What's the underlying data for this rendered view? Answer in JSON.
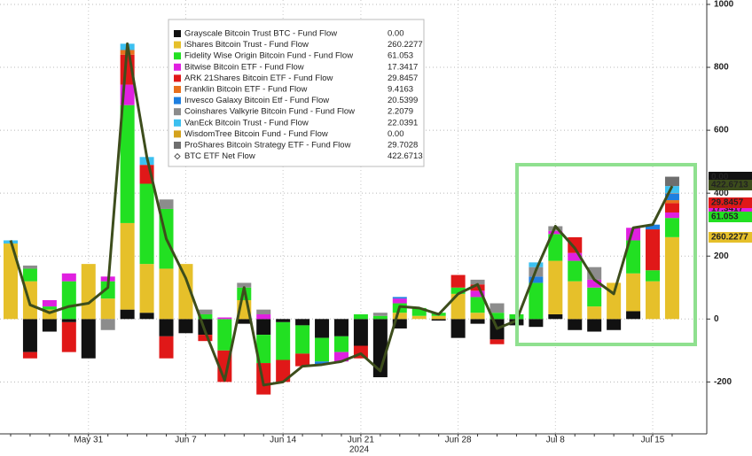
{
  "chart_data": {
    "type": "stacked-bar-line",
    "categories": [
      null,
      null,
      null,
      null,
      "May 31",
      null,
      null,
      null,
      null,
      "Jun 7",
      null,
      null,
      null,
      null,
      "Jun 14",
      null,
      null,
      null,
      "Jun 21",
      null,
      null,
      null,
      null,
      "Jun 28",
      null,
      null,
      null,
      null,
      "Jul 8",
      null,
      null,
      null,
      null,
      "Jul 15",
      null
    ],
    "x_axis_label": "2024",
    "ylim": [
      -365,
      1014
    ],
    "yticks": [
      -200,
      0,
      200,
      400,
      600,
      800,
      1000
    ],
    "grid": true,
    "series": [
      {
        "name": "Grayscale Bitcoin Trust BTC - Fund Flow",
        "color": "#111111",
        "last_label": "0.00",
        "values": [
          0,
          -105,
          -40,
          -10,
          -125,
          0,
          30,
          20,
          -55,
          -45,
          -50,
          0,
          -15,
          -50,
          -10,
          -20,
          -60,
          -55,
          -85,
          -185,
          -30,
          0,
          -5,
          -60,
          -15,
          -65,
          -20,
          -25,
          15,
          -35,
          -40,
          -35,
          25,
          0,
          0
        ]
      },
      {
        "name": "iShares Bitcoin Trust - Fund Flow",
        "color": "#e6c02a",
        "last_label": "260.2277",
        "values": [
          240,
          120,
          30,
          0,
          175,
          65,
          275,
          155,
          160,
          175,
          0,
          0,
          60,
          0,
          0,
          0,
          0,
          0,
          0,
          0,
          20,
          10,
          10,
          80,
          20,
          0,
          0,
          0,
          170,
          120,
          40,
          115,
          120,
          120,
          260.2277
        ]
      },
      {
        "name": "Fidelity Wise Origin Bitcoin Fund - Fund Flow",
        "color": "#22e022",
        "last_label": "61.053",
        "values": [
          0,
          40,
          10,
          120,
          0,
          55,
          375,
          255,
          190,
          0,
          15,
          -100,
          40,
          -90,
          -120,
          -90,
          -75,
          -50,
          15,
          10,
          30,
          25,
          10,
          20,
          50,
          20,
          15,
          115,
          85,
          65,
          60,
          0,
          105,
          35,
          61.053
        ]
      },
      {
        "name": "Bitwise Bitcoin ETF - Fund Flow",
        "color": "#e020e0",
        "last_label": "17.3417",
        "values": [
          0,
          0,
          20,
          25,
          0,
          15,
          65,
          0,
          0,
          0,
          0,
          5,
          0,
          15,
          0,
          0,
          0,
          -30,
          0,
          0,
          15,
          0,
          0,
          0,
          20,
          0,
          0,
          0,
          10,
          25,
          25,
          0,
          40,
          0,
          17.3417
        ]
      },
      {
        "name": "ARK 21Shares Bitcoin ETF - Fund Flow",
        "color": "#e01818",
        "last_label": "29.8457",
        "values": [
          0,
          -20,
          0,
          -95,
          0,
          0,
          95,
          60,
          -70,
          0,
          -20,
          -100,
          0,
          -100,
          -70,
          -40,
          0,
          0,
          -40,
          0,
          0,
          0,
          0,
          40,
          20,
          -15,
          0,
          0,
          0,
          50,
          0,
          0,
          0,
          130,
          29.8457
        ]
      },
      {
        "name": "Franklin Bitcoin ETF - Fund Flow",
        "color": "#e8701e",
        "last_label": "9.4163",
        "values": [
          0,
          0,
          0,
          0,
          0,
          0,
          15,
          0,
          0,
          0,
          0,
          0,
          0,
          0,
          0,
          0,
          0,
          0,
          0,
          0,
          0,
          0,
          0,
          0,
          0,
          0,
          0,
          0,
          0,
          0,
          0,
          0,
          0,
          0,
          9.4163
        ]
      },
      {
        "name": "Invesco Galaxy Bitcoin Etf - Fund Flow",
        "color": "#1e7fe0",
        "last_label": "20.5399",
        "values": [
          0,
          0,
          0,
          0,
          0,
          0,
          0,
          0,
          0,
          0,
          0,
          0,
          0,
          0,
          0,
          0,
          -10,
          0,
          0,
          0,
          5,
          0,
          0,
          0,
          0,
          0,
          0,
          20,
          0,
          0,
          0,
          0,
          0,
          15,
          20.5399
        ]
      },
      {
        "name": "Coinshares Valkyrie Bitcoin Fund - Fund Flow",
        "color": "#8c8c8c",
        "last_label": "2.2079",
        "values": [
          0,
          10,
          0,
          0,
          0,
          -35,
          0,
          0,
          30,
          0,
          15,
          0,
          15,
          15,
          0,
          0,
          0,
          0,
          0,
          10,
          0,
          0,
          0,
          0,
          15,
          30,
          0,
          30,
          15,
          0,
          40,
          0,
          0,
          0,
          2.2079
        ]
      },
      {
        "name": "VanEck Bitcoin Trust - Fund Flow",
        "color": "#3cc0f0",
        "last_label": "22.0391",
        "values": [
          10,
          0,
          0,
          0,
          0,
          0,
          20,
          25,
          0,
          0,
          0,
          0,
          0,
          0,
          0,
          0,
          0,
          0,
          0,
          0,
          0,
          0,
          0,
          0,
          0,
          0,
          0,
          15,
          0,
          0,
          0,
          0,
          0,
          0,
          22.0391
        ]
      },
      {
        "name": "WisdomTree Bitcoin Fund - Fund Flow",
        "color": "#d4a21c",
        "last_label": "0.00",
        "values": [
          0,
          0,
          0,
          0,
          0,
          0,
          0,
          0,
          0,
          0,
          0,
          0,
          0,
          0,
          0,
          0,
          0,
          0,
          0,
          0,
          0,
          0,
          0,
          0,
          0,
          0,
          0,
          0,
          0,
          0,
          0,
          0,
          0,
          0,
          0
        ]
      },
      {
        "name": "ProShares Bitcoin Strategy ETF - Fund Flow",
        "color": "#6e6e6e",
        "last_label": "29.7028",
        "values": [
          0,
          0,
          0,
          0,
          0,
          0,
          0,
          0,
          0,
          0,
          0,
          0,
          0,
          0,
          0,
          0,
          0,
          0,
          0,
          0,
          0,
          0,
          0,
          0,
          0,
          0,
          0,
          0,
          0,
          0,
          0,
          0,
          0,
          0,
          29.7028
        ]
      },
      {
        "name": "BTC ETF Net Flow",
        "color": "#3d4d1c",
        "type": "line",
        "last_label": "422.6713",
        "values": [
          250,
          45,
          20,
          40,
          50,
          100,
          875,
          515,
          255,
          130,
          -40,
          -195,
          100,
          -210,
          -200,
          -150,
          -145,
          -135,
          -110,
          -165,
          40,
          35,
          15,
          80,
          110,
          -30,
          -5,
          155,
          295,
          225,
          125,
          80,
          290,
          300,
          422.6713
        ]
      }
    ]
  }
}
